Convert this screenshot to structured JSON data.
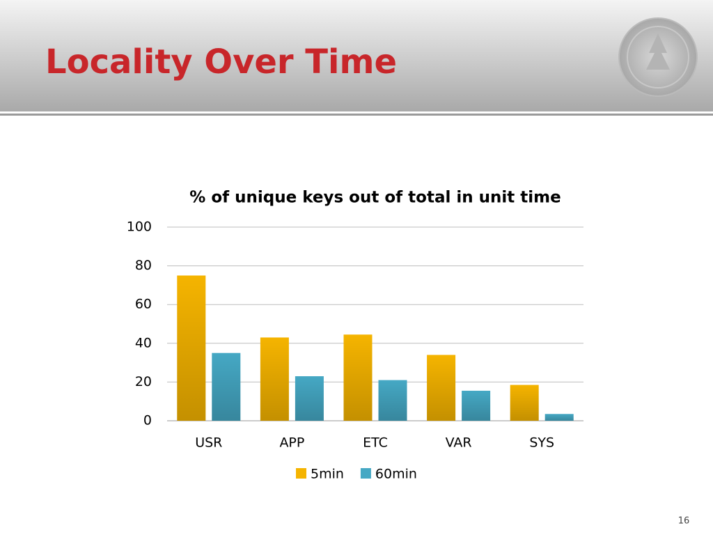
{
  "slide": {
    "title": "Locality Over Time",
    "page_number": "16"
  },
  "chart_data": {
    "type": "bar",
    "title": "% of unique keys out of total in unit time",
    "categories": [
      "USR",
      "APP",
      "ETC",
      "VAR",
      "SYS"
    ],
    "series": [
      {
        "name": "5min",
        "color": "#f5b400",
        "values": [
          75,
          43,
          44.5,
          34,
          18.5
        ]
      },
      {
        "name": "60min",
        "color": "#45a8c4",
        "values": [
          35,
          23,
          21,
          15.5,
          3.5
        ]
      }
    ],
    "ylim": [
      0,
      100
    ],
    "yticks": [
      0,
      20,
      40,
      60,
      80,
      100
    ],
    "grid": true,
    "legend": "bottom"
  }
}
